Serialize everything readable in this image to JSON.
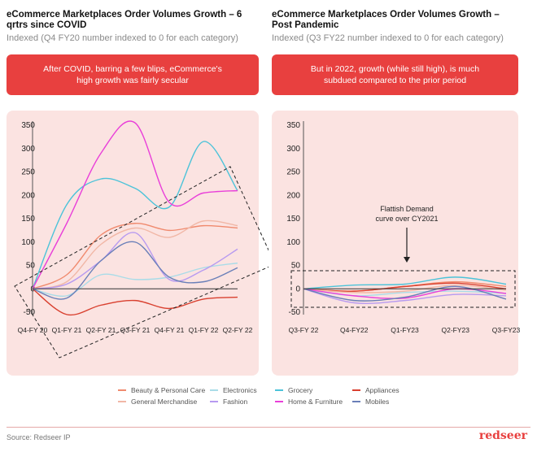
{
  "left": {
    "title": "eCommerce Marketplaces Order Volumes Growth – 6 qrtrs since COVID",
    "subtitle": "Indexed (Q4 FY20 number indexed to 0 for each category)",
    "banner": "After COVID, barring a few blips, eCommerce's high growth was fairly secular"
  },
  "right": {
    "title": "eCommerce Marketplaces Order Volumes Growth – Post Pandemic",
    "subtitle": "Indexed (Q3 FY22 number indexed to 0 for each category)",
    "banner": "But in 2022, growth (while still high), is much subdued compared to the prior period",
    "annotation_line1": "Flattish Demand",
    "annotation_line2": "curve over CY2021"
  },
  "legend": {
    "items": [
      {
        "label": "Beauty & Personal Care",
        "color": "#f08a6e"
      },
      {
        "label": "Electronics",
        "color": "#a9dce8"
      },
      {
        "label": "Grocery",
        "color": "#4cc3d9"
      },
      {
        "label": "Appliances",
        "color": "#d9402f"
      },
      {
        "label": "General Merchandise",
        "color": "#f1b7a6"
      },
      {
        "label": "Fashion",
        "color": "#b79af0"
      },
      {
        "label": "Home & Furniture",
        "color": "#e93fd9"
      },
      {
        "label": "Mobiles",
        "color": "#6a7fb8"
      }
    ]
  },
  "footer": {
    "source": "Source: Redseer IP",
    "brand": "redseer"
  },
  "chart_data": [
    {
      "type": "line",
      "ylim": [
        -50,
        350
      ],
      "yticks": [
        -50,
        0,
        50,
        100,
        150,
        200,
        250,
        300,
        350
      ],
      "categories": [
        "Q4-FY 20",
        "Q1-FY 21",
        "Q2-FY 21",
        "Q3-FY 21",
        "Q4-FY 21",
        "Q1-FY 22",
        "Q2-FY 22"
      ],
      "series": [
        {
          "name": "Beauty & Personal Care",
          "color": "#f08a6e",
          "values": [
            0,
            30,
            115,
            140,
            125,
            135,
            130
          ]
        },
        {
          "name": "Electronics",
          "color": "#a9dce8",
          "values": [
            0,
            -15,
            30,
            20,
            25,
            45,
            55
          ]
        },
        {
          "name": "Grocery",
          "color": "#4cc3d9",
          "values": [
            0,
            180,
            235,
            215,
            175,
            315,
            210
          ]
        },
        {
          "name": "Appliances",
          "color": "#d9402f",
          "values": [
            0,
            -55,
            -35,
            -25,
            -42,
            -22,
            -18
          ]
        },
        {
          "name": "General Merchandise",
          "color": "#f1b7a6",
          "values": [
            0,
            15,
            95,
            130,
            110,
            145,
            135
          ]
        },
        {
          "name": "Fashion",
          "color": "#b79af0",
          "values": [
            0,
            10,
            60,
            120,
            20,
            40,
            85
          ]
        },
        {
          "name": "Home & Furniture",
          "color": "#e93fd9",
          "values": [
            0,
            140,
            290,
            355,
            185,
            205,
            210
          ]
        },
        {
          "name": "Mobiles",
          "color": "#6a7fb8",
          "values": [
            0,
            -20,
            60,
            100,
            25,
            15,
            45
          ]
        }
      ]
    },
    {
      "type": "line",
      "ylim": [
        -50,
        350
      ],
      "yticks": [
        -50,
        0,
        50,
        100,
        150,
        200,
        250,
        300,
        350
      ],
      "categories": [
        "Q3-FY 22",
        "Q4-FY22",
        "Q1-FY23",
        "Q2-FY23",
        "Q3-FY23"
      ],
      "series": [
        {
          "name": "Beauty & Personal Care",
          "color": "#f08a6e",
          "values": [
            0,
            -5,
            5,
            15,
            5
          ]
        },
        {
          "name": "Electronics",
          "color": "#a9dce8",
          "values": [
            0,
            -15,
            -8,
            -5,
            -10
          ]
        },
        {
          "name": "Grocery",
          "color": "#4cc3d9",
          "values": [
            0,
            8,
            10,
            25,
            10
          ]
        },
        {
          "name": "Appliances",
          "color": "#d9402f",
          "values": [
            0,
            -5,
            5,
            12,
            0
          ]
        },
        {
          "name": "General Merchandise",
          "color": "#f1b7a6",
          "values": [
            0,
            -8,
            -5,
            8,
            -3
          ]
        },
        {
          "name": "Fashion",
          "color": "#b79af0",
          "values": [
            0,
            -30,
            -25,
            -12,
            -15
          ]
        },
        {
          "name": "Home & Furniture",
          "color": "#e93fd9",
          "values": [
            0,
            -15,
            -20,
            0,
            -10
          ]
        },
        {
          "name": "Mobiles",
          "color": "#6a7fb8",
          "values": [
            0,
            -25,
            -18,
            5,
            -22
          ]
        }
      ]
    }
  ]
}
